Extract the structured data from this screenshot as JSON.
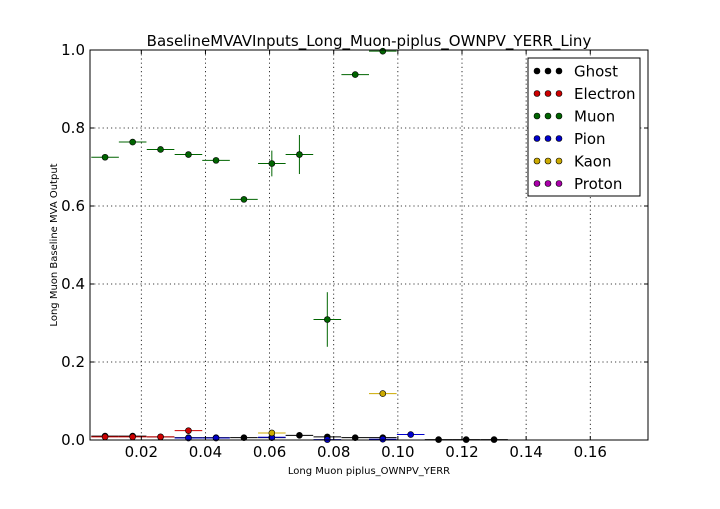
{
  "chart_data": {
    "type": "scatter",
    "title": "BaselineMVAVInputs_Long_Muon-piplus_OWNPV_YERR_Liny",
    "xlabel": "Long Muon piplus_OWNPV_YERR",
    "ylabel": "Long Muon Baseline MVA Output",
    "xlim": [
      0.004,
      0.178
    ],
    "ylim": [
      0.0,
      1.0
    ],
    "x_tick_labels": [
      "0.02",
      "0.04",
      "0.06",
      "0.08",
      "0.10",
      "0.12",
      "0.14",
      "0.16"
    ],
    "y_tick_labels": [
      "0.0",
      "0.2",
      "0.4",
      "0.6",
      "0.8",
      "1.0"
    ],
    "grid": true,
    "legend_position": "top-right",
    "series": [
      {
        "name": "Ghost",
        "color": "#000000",
        "points": [
          {
            "x": 0.0087,
            "y": 0.01,
            "xerr": 0.0043,
            "yerr": 0.002
          },
          {
            "x": 0.0173,
            "y": 0.01,
            "xerr": 0.0043,
            "yerr": 0.002
          },
          {
            "x": 0.026,
            "y": 0.008,
            "xerr": 0.0043,
            "yerr": 0.002
          },
          {
            "x": 0.0347,
            "y": 0.006,
            "xerr": 0.0043,
            "yerr": 0.002
          },
          {
            "x": 0.0433,
            "y": 0.006,
            "xerr": 0.0043,
            "yerr": 0.002
          },
          {
            "x": 0.052,
            "y": 0.006,
            "xerr": 0.0043,
            "yerr": 0.002
          },
          {
            "x": 0.0607,
            "y": 0.006,
            "xerr": 0.0043,
            "yerr": 0.002
          },
          {
            "x": 0.0693,
            "y": 0.012,
            "xerr": 0.0043,
            "yerr": 0.002
          },
          {
            "x": 0.078,
            "y": 0.008,
            "xerr": 0.0043,
            "yerr": 0.002
          },
          {
            "x": 0.0867,
            "y": 0.006,
            "xerr": 0.0043,
            "yerr": 0.002
          },
          {
            "x": 0.0953,
            "y": 0.006,
            "xerr": 0.0043,
            "yerr": 0.002
          },
          {
            "x": 0.1127,
            "y": 0.001,
            "xerr": 0.0043,
            "yerr": 0.001
          },
          {
            "x": 0.1213,
            "y": 0.001,
            "xerr": 0.0043,
            "yerr": 0.001
          },
          {
            "x": 0.13,
            "y": 0.001,
            "xerr": 0.0043,
            "yerr": 0.001
          }
        ]
      },
      {
        "name": "Electron",
        "color": "#cc0000",
        "points": [
          {
            "x": 0.0087,
            "y": 0.008,
            "xerr": 0.0043,
            "yerr": 0.002
          },
          {
            "x": 0.0173,
            "y": 0.008,
            "xerr": 0.0043,
            "yerr": 0.002
          },
          {
            "x": 0.026,
            "y": 0.008,
            "xerr": 0.0043,
            "yerr": 0.002
          },
          {
            "x": 0.0347,
            "y": 0.024,
            "xerr": 0.0043,
            "yerr": 0.004
          }
        ]
      },
      {
        "name": "Muon",
        "color": "#006400",
        "points": [
          {
            "x": 0.0087,
            "y": 0.725,
            "xerr": 0.0043,
            "yerr": 0.004
          },
          {
            "x": 0.0173,
            "y": 0.764,
            "xerr": 0.0043,
            "yerr": 0.004
          },
          {
            "x": 0.026,
            "y": 0.745,
            "xerr": 0.0043,
            "yerr": 0.004
          },
          {
            "x": 0.0347,
            "y": 0.732,
            "xerr": 0.0043,
            "yerr": 0.004
          },
          {
            "x": 0.0433,
            "y": 0.717,
            "xerr": 0.0043,
            "yerr": 0.005
          },
          {
            "x": 0.052,
            "y": 0.617,
            "xerr": 0.0043,
            "yerr": 0.008
          },
          {
            "x": 0.0607,
            "y": 0.709,
            "xerr": 0.0043,
            "yerr": 0.033
          },
          {
            "x": 0.0693,
            "y": 0.732,
            "xerr": 0.0043,
            "yerr": 0.05
          },
          {
            "x": 0.078,
            "y": 0.309,
            "xerr": 0.0043,
            "yerr": 0.07
          },
          {
            "x": 0.0867,
            "y": 0.937,
            "xerr": 0.0043,
            "yerr": 0.004
          },
          {
            "x": 0.0953,
            "y": 0.997,
            "xerr": 0.0043,
            "yerr": 0.002
          }
        ]
      },
      {
        "name": "Pion",
        "color": "#0000cc",
        "points": [
          {
            "x": 0.0347,
            "y": 0.005,
            "xerr": 0.0043,
            "yerr": 0.001
          },
          {
            "x": 0.0433,
            "y": 0.005,
            "xerr": 0.0043,
            "yerr": 0.001
          },
          {
            "x": 0.0607,
            "y": 0.007,
            "xerr": 0.0043,
            "yerr": 0.002
          },
          {
            "x": 0.078,
            "y": 0.001,
            "xerr": 0.0043,
            "yerr": 0.001
          },
          {
            "x": 0.0953,
            "y": 0.002,
            "xerr": 0.0043,
            "yerr": 0.001
          },
          {
            "x": 0.104,
            "y": 0.014,
            "xerr": 0.0043,
            "yerr": 0.003
          }
        ]
      },
      {
        "name": "Kaon",
        "color": "#ccaa00",
        "points": [
          {
            "x": 0.0607,
            "y": 0.018,
            "xerr": 0.0043,
            "yerr": 0.003
          },
          {
            "x": 0.0953,
            "y": 0.119,
            "xerr": 0.0043,
            "yerr": 0.004
          }
        ]
      },
      {
        "name": "Proton",
        "color": "#aa00aa",
        "points": []
      }
    ]
  }
}
